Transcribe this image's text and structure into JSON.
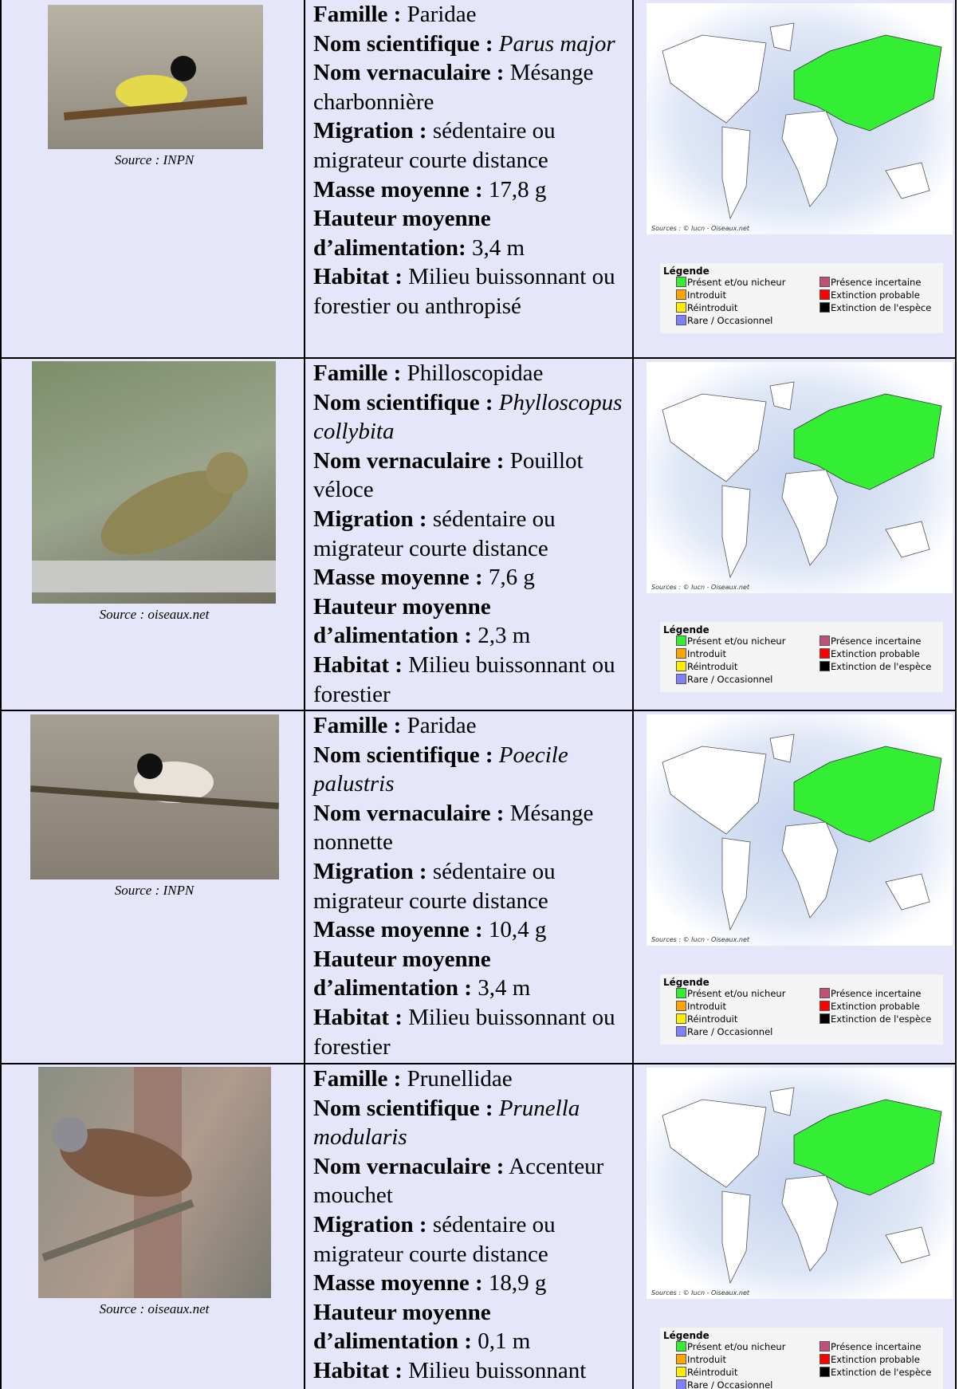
{
  "rows": [
    {
      "photo_source": "Source : INPN",
      "fields": [
        {
          "label": "Famille :",
          "value": "Paridae"
        },
        {
          "label": "Nom scientifique :",
          "value": "Parus major"
        },
        {
          "label": "Nom vernaculaire :",
          "value": "Mésange charbonnière"
        },
        {
          "label": "Migration :",
          "value": "sédentaire ou migrateur courte distance"
        },
        {
          "label": "Masse moyenne :",
          "value": "17,8 g"
        },
        {
          "label": "Hauteur moyenne d’alimentation:",
          "value": "3,4 m"
        },
        {
          "label": "Habitat :",
          "value": "Milieu buissonnant ou forestier ou anthropisé"
        }
      ]
    },
    {
      "photo_source": "Source : oiseaux.net",
      "fields": [
        {
          "label": "Famille :",
          "value": "Philloscopidae"
        },
        {
          "label": "Nom scientifique :",
          "value": "Phylloscopus collybita"
        },
        {
          "label": "Nom vernaculaire :",
          "value": "Pouillot véloce"
        },
        {
          "label": "Migration :",
          "value": "sédentaire ou migrateur courte distance"
        },
        {
          "label": "Masse moyenne :",
          "value": "7,6 g"
        },
        {
          "label": "Hauteur moyenne d’alimentation :",
          "value": "2,3 m"
        },
        {
          "label": "Habitat :",
          "value": "Milieu buissonnant ou forestier"
        }
      ]
    },
    {
      "photo_source": "Source : INPN",
      "fields": [
        {
          "label": "Famille :",
          "value": "Paridae"
        },
        {
          "label": "Nom scientifique :",
          "value": "Poecile palustris"
        },
        {
          "label": "Nom vernaculaire :",
          "value": "Mésange nonnette"
        },
        {
          "label": "Migration :",
          "value": "sédentaire ou migrateur courte distance"
        },
        {
          "label": "Masse moyenne :",
          "value": "10,4 g"
        },
        {
          "label": "Hauteur moyenne d’alimentation :",
          "value": "3,4 m"
        },
        {
          "label": "Habitat :",
          "value": "Milieu buissonnant ou forestier"
        }
      ]
    },
    {
      "photo_source": "Source : oiseaux.net",
      "fields": [
        {
          "label": "Famille :",
          "value": "Prunellidae"
        },
        {
          "label": "Nom scientifique :",
          "value": "Prunella modularis"
        },
        {
          "label": "Nom vernaculaire :",
          "value": "Accenteur mouchet"
        },
        {
          "label": "Migration :",
          "value": "sédentaire ou migrateur courte distance"
        },
        {
          "label": "Masse moyenne :",
          "value": "18,9 g"
        },
        {
          "label": "Hauteur moyenne d’alimentation :",
          "value": "0,1 m"
        },
        {
          "label": "Habitat :",
          "value": "Milieu buissonnant"
        }
      ]
    }
  ],
  "map_source": "Sources : © Iucn - Oiseaux.net",
  "legend": {
    "title": "Légende",
    "items": [
      "Présent et/ou nicheur",
      "Introduit",
      "Réintroduit",
      "Rare / Occasionnel",
      "Présence incertaine",
      "Extinction probable",
      "Extinction de l'espèce"
    ]
  }
}
